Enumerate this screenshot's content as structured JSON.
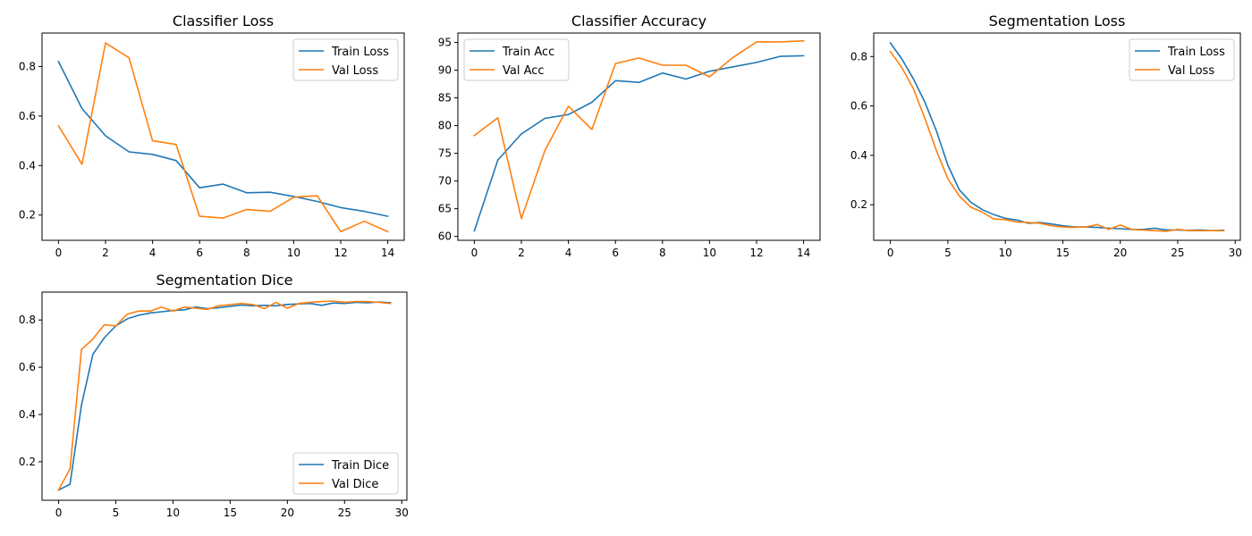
{
  "colors": {
    "series1": "#1f77b4",
    "series2": "#ff7f0e"
  },
  "chart_data": [
    {
      "type": "line",
      "title": "Classifier Loss",
      "x": [
        0,
        1,
        2,
        3,
        4,
        5,
        6,
        7,
        8,
        9,
        10,
        11,
        12,
        13,
        14
      ],
      "xlim": [
        -0.7,
        14.7
      ],
      "ylim": [
        0.098,
        0.935
      ],
      "xticks": [
        0,
        2,
        4,
        6,
        8,
        10,
        12,
        14
      ],
      "xtick_labels": [
        "0",
        "2",
        "4",
        "6",
        "8",
        "10",
        "12",
        "14"
      ],
      "yticks": [
        0.2,
        0.4,
        0.6,
        0.8
      ],
      "ytick_labels": [
        "0.2",
        "0.4",
        "0.6",
        "0.8"
      ],
      "legend_position": "upper-right",
      "grid": false,
      "series": [
        {
          "name": "Train Loss",
          "values": [
            0.82,
            0.63,
            0.52,
            0.455,
            0.445,
            0.42,
            0.31,
            0.325,
            0.29,
            0.292,
            0.275,
            0.255,
            0.23,
            0.215,
            0.195
          ]
        },
        {
          "name": "Val Loss",
          "values": [
            0.56,
            0.405,
            0.895,
            0.835,
            0.5,
            0.485,
            0.195,
            0.188,
            0.223,
            0.215,
            0.272,
            0.278,
            0.133,
            0.175,
            0.133
          ]
        }
      ]
    },
    {
      "type": "line",
      "title": "Classifier Accuracy",
      "x": [
        0,
        1,
        2,
        3,
        4,
        5,
        6,
        7,
        8,
        9,
        10,
        11,
        12,
        13,
        14
      ],
      "xlim": [
        -0.7,
        14.7
      ],
      "ylim": [
        59.3,
        96.7
      ],
      "xticks": [
        0,
        2,
        4,
        6,
        8,
        10,
        12,
        14
      ],
      "xtick_labels": [
        "0",
        "2",
        "4",
        "6",
        "8",
        "10",
        "12",
        "14"
      ],
      "yticks": [
        60,
        65,
        70,
        75,
        80,
        85,
        90,
        95
      ],
      "ytick_labels": [
        "60",
        "65",
        "70",
        "75",
        "80",
        "85",
        "90",
        "95"
      ],
      "legend_position": "upper-left",
      "grid": false,
      "series": [
        {
          "name": "Train Acc",
          "values": [
            61,
            73.8,
            78.5,
            81.3,
            82,
            84.2,
            88.1,
            87.8,
            89.5,
            88.4,
            89.8,
            90.6,
            91.4,
            92.5,
            92.6
          ]
        },
        {
          "name": "Val Acc",
          "values": [
            78.2,
            81.4,
            63.2,
            75.5,
            83.5,
            79.3,
            91.2,
            92.2,
            90.9,
            90.9,
            88.8,
            92.3,
            95.1,
            95.1,
            95.3
          ]
        }
      ]
    },
    {
      "type": "line",
      "title": "Segmentation Loss",
      "x": [
        0,
        1,
        2,
        3,
        4,
        5,
        6,
        7,
        8,
        9,
        10,
        11,
        12,
        13,
        14,
        15,
        16,
        17,
        18,
        19,
        20,
        21,
        22,
        23,
        24,
        25,
        26,
        27,
        28,
        29
      ],
      "xlim": [
        -1.45,
        30.45
      ],
      "ylim": [
        0.056,
        0.895
      ],
      "xticks": [
        0,
        5,
        10,
        15,
        20,
        25,
        30
      ],
      "xtick_labels": [
        "0",
        "5",
        "10",
        "15",
        "20",
        "25",
        "30"
      ],
      "yticks": [
        0.2,
        0.4,
        0.6,
        0.8
      ],
      "ytick_labels": [
        "0.2",
        "0.4",
        "0.6",
        "0.8"
      ],
      "legend_position": "upper-right",
      "grid": false,
      "series": [
        {
          "name": "Train Loss",
          "values": [
            0.855,
            0.79,
            0.71,
            0.615,
            0.5,
            0.36,
            0.26,
            0.21,
            0.18,
            0.16,
            0.145,
            0.138,
            0.125,
            0.128,
            0.122,
            0.115,
            0.11,
            0.11,
            0.108,
            0.105,
            0.103,
            0.1,
            0.1,
            0.105,
            0.098,
            0.098,
            0.096,
            0.098,
            0.095,
            0.097
          ]
        },
        {
          "name": "Val Loss",
          "values": [
            0.82,
            0.755,
            0.67,
            0.55,
            0.42,
            0.305,
            0.235,
            0.19,
            0.17,
            0.142,
            0.14,
            0.13,
            0.128,
            0.125,
            0.115,
            0.11,
            0.108,
            0.11,
            0.12,
            0.1,
            0.118,
            0.1,
            0.098,
            0.095,
            0.093,
            0.1,
            0.095,
            0.095,
            0.095,
            0.095
          ]
        }
      ]
    },
    {
      "type": "line",
      "title": "Segmentation Dice",
      "x": [
        0,
        1,
        2,
        3,
        4,
        5,
        6,
        7,
        8,
        9,
        10,
        11,
        12,
        13,
        14,
        15,
        16,
        17,
        18,
        19,
        20,
        21,
        22,
        23,
        24,
        25,
        26,
        27,
        28,
        29
      ],
      "xlim": [
        -1.45,
        30.45
      ],
      "ylim": [
        0.037,
        0.918
      ],
      "xticks": [
        0,
        5,
        10,
        15,
        20,
        25,
        30
      ],
      "xtick_labels": [
        "0",
        "5",
        "10",
        "15",
        "20",
        "25",
        "30"
      ],
      "yticks": [
        0.2,
        0.4,
        0.6,
        0.8
      ],
      "ytick_labels": [
        "0.2",
        "0.4",
        "0.6",
        "0.8"
      ],
      "legend_position": "lower-right",
      "grid": false,
      "series": [
        {
          "name": "Train Dice",
          "values": [
            0.08,
            0.105,
            0.44,
            0.655,
            0.725,
            0.775,
            0.805,
            0.82,
            0.83,
            0.835,
            0.84,
            0.843,
            0.855,
            0.848,
            0.852,
            0.858,
            0.863,
            0.86,
            0.862,
            0.86,
            0.866,
            0.868,
            0.87,
            0.862,
            0.872,
            0.87,
            0.875,
            0.873,
            0.876,
            0.873
          ]
        },
        {
          "name": "Val Dice",
          "values": [
            0.08,
            0.17,
            0.675,
            0.72,
            0.78,
            0.775,
            0.825,
            0.838,
            0.838,
            0.855,
            0.838,
            0.855,
            0.85,
            0.845,
            0.86,
            0.865,
            0.87,
            0.865,
            0.848,
            0.875,
            0.85,
            0.87,
            0.875,
            0.878,
            0.88,
            0.875,
            0.878,
            0.878,
            0.875,
            0.87
          ]
        }
      ]
    }
  ]
}
